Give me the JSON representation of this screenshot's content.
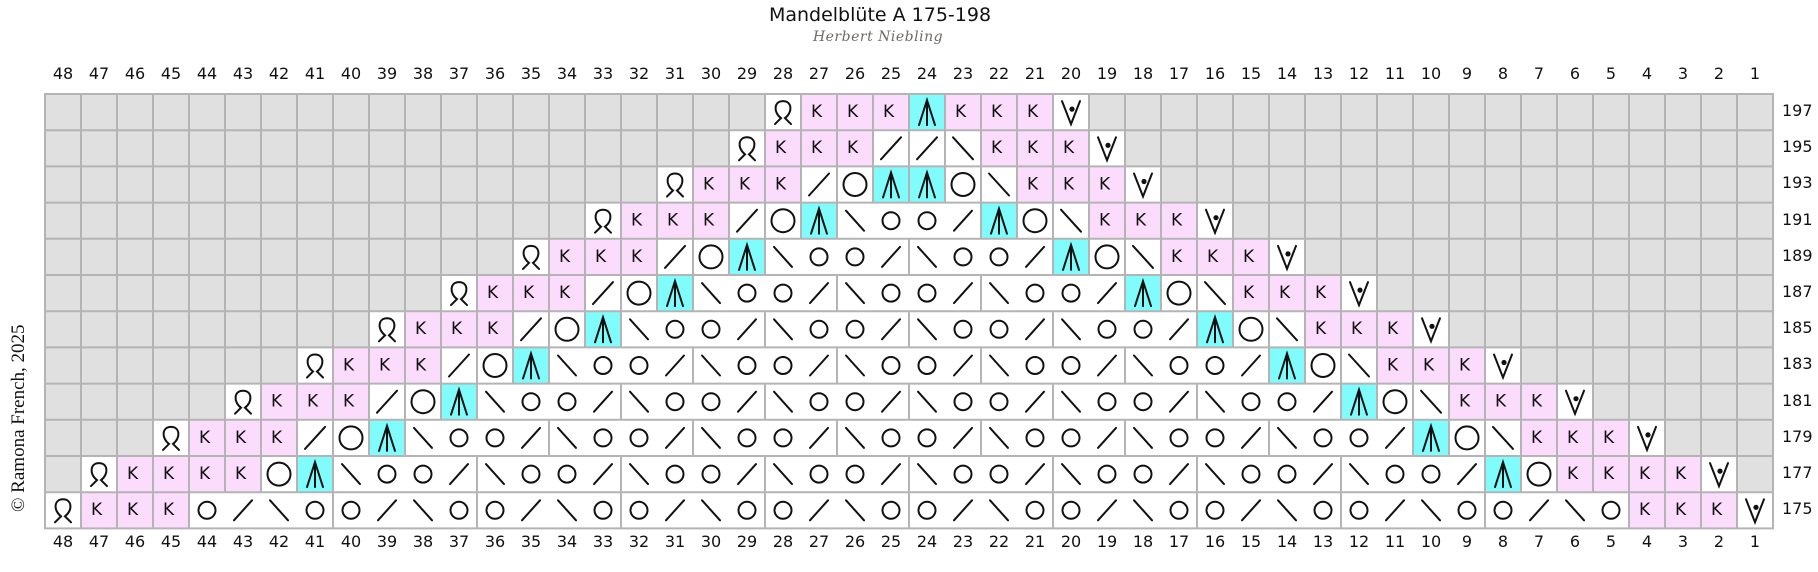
{
  "title": "Mandelblüte A 175-198",
  "designer": "Herbert Niebling",
  "copyright": "© Ramona French, 2025",
  "colors": {
    "no_stitch": "#e0e0e0",
    "knit_k": "#fcdcfc",
    "decrease": "#80fcfc",
    "plain": "#ffffff",
    "grid_line": "#b4b4b4"
  },
  "symbol_key": {
    ".": "no-stitch",
    "Q": "twisted-loop",
    "K": "K",
    "A": "multi-decrease",
    "V": "v-dot",
    "/": "right-slant",
    "\\": "left-slant",
    "O": "yarn-over"
  },
  "k_label": "K",
  "column_numbers": [
    "48",
    "47",
    "46",
    "45",
    "44",
    "43",
    "42",
    "41",
    "40",
    "39",
    "38",
    "37",
    "36",
    "35",
    "34",
    "33",
    "32",
    "31",
    "30",
    "29",
    "28",
    "27",
    "26",
    "25",
    "24",
    "23",
    "22",
    "21",
    "20",
    "19",
    "18",
    "17",
    "16",
    "15",
    "14",
    "13",
    "12",
    "11",
    "10",
    "9",
    "8",
    "7",
    "6",
    "5",
    "4",
    "3",
    "2",
    "1"
  ],
  "rows": [
    {
      "label": "197",
      "cells": ". . . . . . . . . . . . . . . . . . . . Q K K K A K K K V . . . . . . . . . . . . . . . . . . ."
    },
    {
      "label": "195",
      "cells": ". . . . . . . . . . . . . . . . . . . Q K K K / / \\ K K K V . . . . . . . . . . . . . . . . . ."
    },
    {
      "label": "193",
      "cells": ". . . . . . . . . . . . . . . . . Q K K K / O A A O \\ K K K V . . . . . . . . . . . . . . . . ."
    },
    {
      "label": "191",
      "cells": ". . . . . . . . . . . . . . . Q K K K / O A \\ O O / A O \\ K K K V . . . . . . . . . . . . . . ."
    },
    {
      "label": "189",
      "cells": ". . . . . . . . . . . . . Q K K K / O A \\ O O / \\ O O / A O \\ K K K V . . . . . . . . . . . . ."
    },
    {
      "label": "187",
      "cells": ". . . . . . . . . . . Q K K K / O A \\ O O / \\ O O / \\ O O / A O \\ K K K V . . . . . . . . . . ."
    },
    {
      "label": "185",
      "cells": ". . . . . . . . . Q K K K / O A \\ O O / \\ O O / \\ O O / \\ O O / A O \\ K K K V . . . . . . . . ."
    },
    {
      "label": "183",
      "cells": ". . . . . . . Q K K K / O A \\ O O / \\ O O / \\ O O / \\ O O / \\ O O / A O \\ K K K V . . . . . . ."
    },
    {
      "label": "181",
      "cells": ". . . . . Q K K K / O A \\ O O / \\ O O / \\ O O / \\ O O / \\ O O / \\ O O / A O \\ K K K V . . . . ."
    },
    {
      "label": "179",
      "cells": ". . . Q K K K / O A \\ O O / \\ O O / \\ O O / \\ O O / \\ O O / \\ O O / \\ O O / A O \\ K K K V . . ."
    },
    {
      "label": "177",
      "cells": ". Q K K K K O A \\ O O / \\ O O / \\ O O / \\ O O / \\ O O / \\ O O / \\ O O / \\ O O / A O K K K K V ."
    },
    {
      "label": "175",
      "cells": "Q K K K O / \\ O O / \\ O O / \\ O O / \\ O O / \\ O O / \\ O O / \\ O O / \\ O O / \\ O O / \\ O K K K V"
    }
  ]
}
